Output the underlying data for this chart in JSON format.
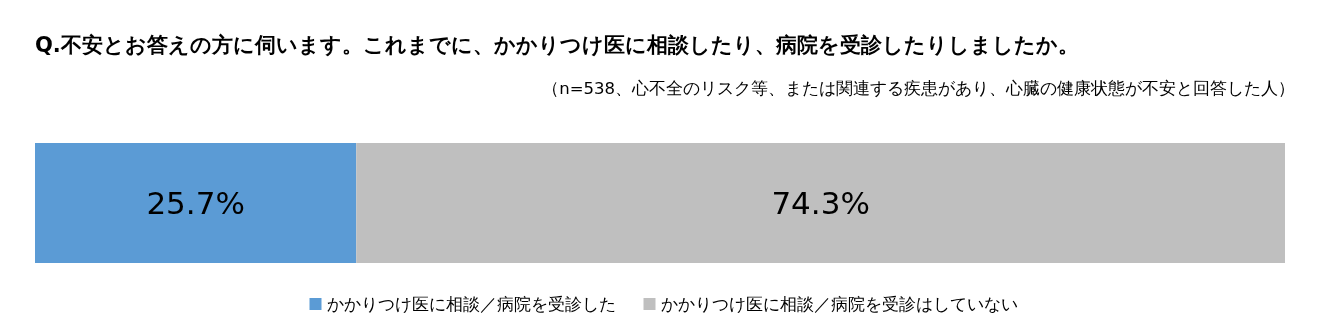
{
  "chart_data": {
    "type": "bar",
    "orientation": "horizontal",
    "stacked": true,
    "title": "Q.不安とお答えの方に伺います。これまでに、かかりつけ医に相談したり、病院を受診したりしましたか。",
    "subtitle": "（n=538、心不全のリスク等、または関連する疾患があり、心臓の健康状態が不安と回答した人）",
    "categories": [
      null
    ],
    "series": [
      {
        "name": "かかりつけ医に相談／病院を受診した",
        "color": "#5b9bd5",
        "values": [
          25.7
        ],
        "value_labels": [
          "25.7%"
        ]
      },
      {
        "name": "かかりつけ医に相談／病院を受診はしていない",
        "color": "#bfbfbf",
        "values": [
          74.3
        ],
        "value_labels": [
          "74.3%"
        ]
      }
    ],
    "xlim": [
      0,
      100
    ],
    "legend": "bottom"
  }
}
